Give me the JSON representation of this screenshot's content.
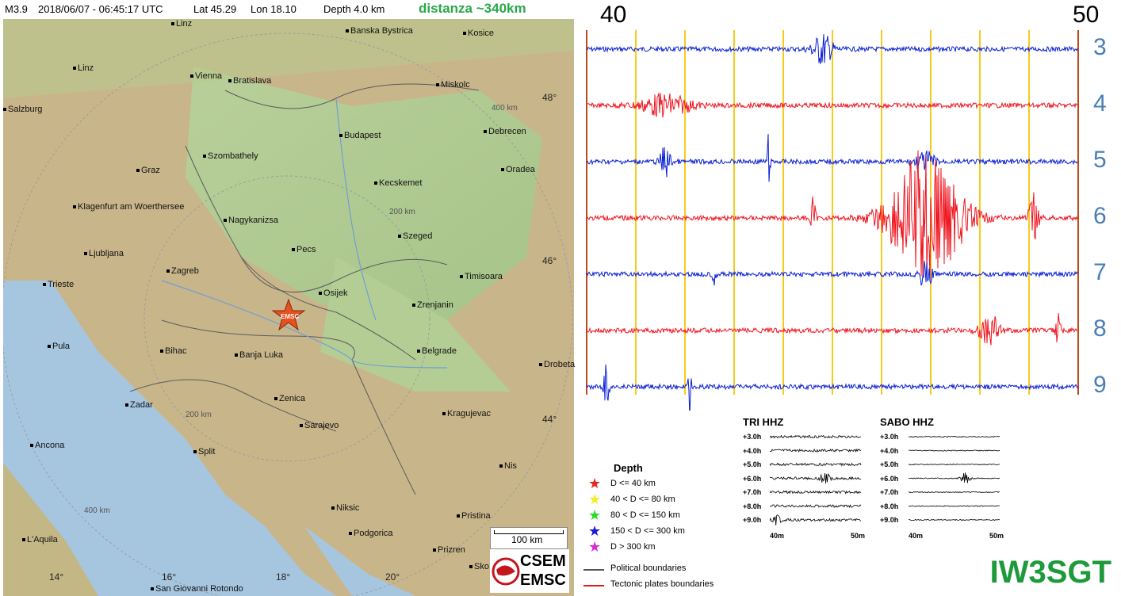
{
  "header": {
    "magnitude": "M3.9",
    "datetime": "2018/06/07 - 06:45:17 UTC",
    "lat": "Lat 45.29",
    "lon": "Lon  18.10",
    "depth": "Depth   4.0 km",
    "distance": "distanza ~340km"
  },
  "map": {
    "cities": [
      {
        "name": "Linz"
      },
      {
        "name": "Vienna"
      },
      {
        "name": "Bratislava"
      },
      {
        "name": "Banska Bystrica"
      },
      {
        "name": "Kosice"
      },
      {
        "name": "Salzburg"
      },
      {
        "name": "Miskolc"
      },
      {
        "name": "Budapest"
      },
      {
        "name": "Debrecen"
      },
      {
        "name": "Szombathely"
      },
      {
        "name": "Graz"
      },
      {
        "name": "Oradea"
      },
      {
        "name": "Kecskemet"
      },
      {
        "name": "Klagenfurt am Woerthersee"
      },
      {
        "name": "Nagykanizsa"
      },
      {
        "name": "Szeged"
      },
      {
        "name": "Ljubljana"
      },
      {
        "name": "Pecs"
      },
      {
        "name": "Zagreb"
      },
      {
        "name": "Timisoara"
      },
      {
        "name": "Trieste"
      },
      {
        "name": "Osijek"
      },
      {
        "name": "Zrenjanin"
      },
      {
        "name": "Pula"
      },
      {
        "name": "Bihac"
      },
      {
        "name": "Banja Luka"
      },
      {
        "name": "Belgrade"
      },
      {
        "name": "Drobeta"
      },
      {
        "name": "Zadar"
      },
      {
        "name": "Zenica"
      },
      {
        "name": "Sarajevo"
      },
      {
        "name": "Kragujevac"
      },
      {
        "name": "Ancona"
      },
      {
        "name": "Split"
      },
      {
        "name": "Nis"
      },
      {
        "name": "Niksic"
      },
      {
        "name": "Pristina"
      },
      {
        "name": "Podgorica"
      },
      {
        "name": "L'Aquila"
      },
      {
        "name": "Prizren"
      },
      {
        "name": "Sko"
      },
      {
        "name": "San Giovanni Rotondo"
      }
    ],
    "lat_labels": [
      "48°",
      "46°",
      "44°"
    ],
    "lon_labels": [
      "14°",
      "16°",
      "18°",
      "20°"
    ],
    "ring_labels": [
      "400 km",
      "200 km",
      "200 km",
      "400 km"
    ],
    "epicenter_label": "EMSC",
    "scale_label": "100 km",
    "logo_text": [
      "CSEM",
      "EMSC"
    ]
  },
  "seismogram": {
    "start_min": "40",
    "end_min": "50",
    "hours": [
      "3",
      "4",
      "5",
      "6",
      "7",
      "8",
      "9"
    ],
    "colors": {
      "blue": "#0b1fd6",
      "red": "#f0141e",
      "gridline": "#f5cc1c",
      "border_line": "#b84a1c"
    }
  },
  "mini_plots": [
    {
      "title": "TRI HHZ",
      "rows": [
        "+3.0h",
        "+4.0h",
        "+5.0h",
        "+6.0h",
        "+7.0h",
        "+8.0h",
        "+9.0h"
      ],
      "x_start": "40m",
      "x_end": "50m"
    },
    {
      "title": "SABO HHZ",
      "rows": [
        "+3.0h",
        "+4.0h",
        "+5.0h",
        "+6.0h",
        "+7.0h",
        "+8.0h",
        "+9.0h"
      ],
      "x_start": "40m",
      "x_end": "50m"
    }
  ],
  "legend": {
    "title": "Depth",
    "items": [
      {
        "label": "D <= 40 km",
        "color": "#e8261a"
      },
      {
        "label": "40 < D <= 80 km",
        "color": "#f2ee26"
      },
      {
        "label": "80 < D <= 150 km",
        "color": "#2ad92a"
      },
      {
        "label": "150 < D <= 300 km",
        "color": "#1a1ad9"
      },
      {
        "label": "D > 300 km",
        "color": "#d92ad9"
      }
    ],
    "boundaries": [
      {
        "label": "Political boundaries",
        "color": "#555555"
      },
      {
        "label": "Tectonic plates boundaries",
        "color": "#e21a1a"
      }
    ]
  },
  "callsign": "IW3SGT"
}
